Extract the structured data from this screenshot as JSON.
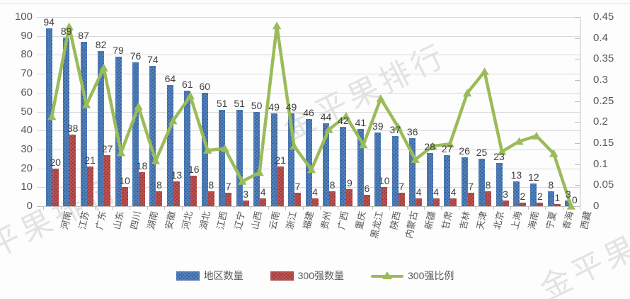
{
  "watermark": {
    "text": "金平果排行"
  },
  "legend": [
    {
      "label": "地区数量",
      "type": "bar",
      "color": "#4F81BD"
    },
    {
      "label": "300强数量",
      "type": "bar",
      "color": "#C0504D"
    },
    {
      "label": "300强比例",
      "type": "line",
      "color": "#9BBB59"
    }
  ],
  "chart_data": {
    "type": "bar",
    "subtype": "clustered bars with secondary-axis line",
    "title": "",
    "xlabel": "",
    "ylabel": "",
    "grid": true,
    "legend_position": "bottom",
    "categories": [
      "河南",
      "江苏",
      "广东",
      "山东",
      "四川",
      "湖南",
      "安徽",
      "河北",
      "湖北",
      "江西",
      "辽宁",
      "山西",
      "云南",
      "浙江",
      "福建",
      "贵州",
      "广西",
      "重庆",
      "黑龙江",
      "陕西",
      "内蒙古",
      "新疆",
      "甘肃",
      "吉林",
      "天津",
      "北京",
      "上海",
      "海南",
      "宁夏",
      "青海",
      "西藏"
    ],
    "series": [
      {
        "name": "地区数量",
        "type": "bar",
        "axis": "left",
        "color": "#4F81BD",
        "values": [
          94,
          89,
          87,
          82,
          79,
          76,
          74,
          64,
          61,
          60,
          51,
          51,
          50,
          49,
          49,
          46,
          44,
          42,
          41,
          39,
          37,
          36,
          28,
          27,
          26,
          25,
          23,
          13,
          12,
          8,
          3
        ],
        "labels_shown": true
      },
      {
        "name": "300强数量",
        "type": "bar",
        "axis": "left",
        "color": "#C0504D",
        "values": [
          20,
          38,
          21,
          27,
          10,
          18,
          8,
          13,
          16,
          8,
          7,
          3,
          4,
          21,
          7,
          4,
          8,
          9,
          6,
          10,
          7,
          4,
          4,
          4,
          7,
          8,
          3,
          2,
          2,
          1,
          0
        ],
        "labels_shown": true
      },
      {
        "name": "300强比例",
        "type": "line",
        "axis": "right",
        "color": "#9BBB59",
        "marker": "triangle-up",
        "values": [
          0.213,
          0.427,
          0.241,
          0.329,
          0.127,
          0.237,
          0.108,
          0.203,
          0.262,
          0.133,
          0.137,
          0.059,
          0.08,
          0.429,
          0.143,
          0.087,
          0.182,
          0.214,
          0.146,
          0.256,
          0.189,
          0.111,
          0.143,
          0.148,
          0.269,
          0.32,
          0.13,
          0.154,
          0.167,
          0.125,
          0
        ],
        "labels_shown": false
      }
    ],
    "left_axis": {
      "min": 0,
      "max": 100,
      "step": 10,
      "ticks": [
        0,
        10,
        20,
        30,
        40,
        50,
        60,
        70,
        80,
        90,
        100
      ]
    },
    "right_axis": {
      "min": 0,
      "max": 0.45,
      "step": 0.05,
      "ticks": [
        0,
        0.05,
        0.1,
        0.15,
        0.2,
        0.25,
        0.3,
        0.35,
        0.4,
        0.45
      ]
    },
    "gridline_color": "#d9d9d9",
    "axis_line_color": "#bfbfbf",
    "label_color": "#404040",
    "axis_text_color": "#595959"
  }
}
